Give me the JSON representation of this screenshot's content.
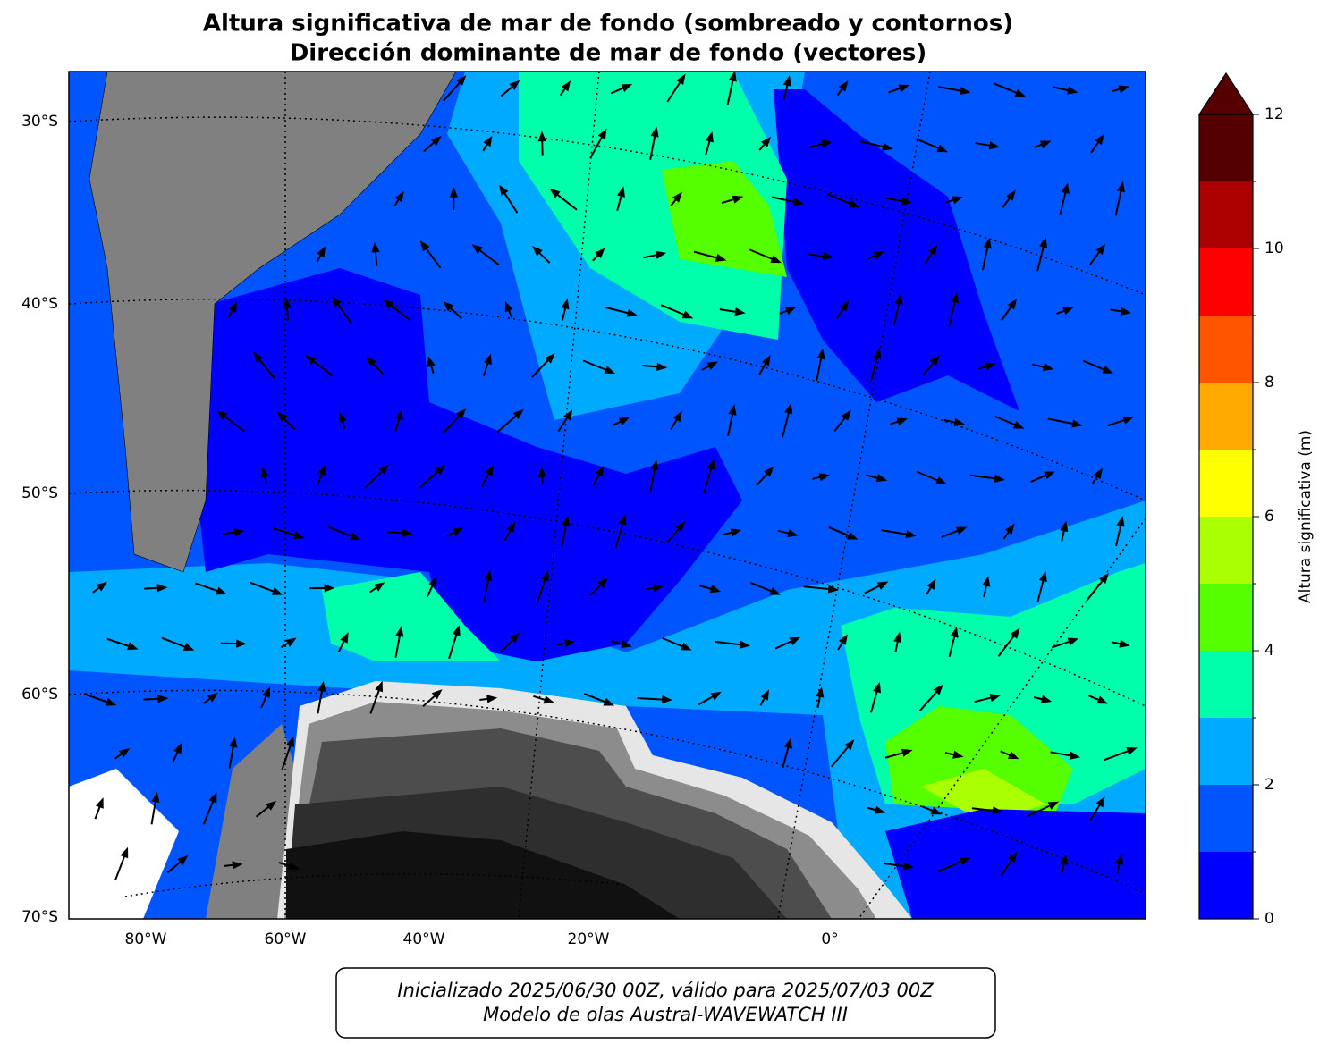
{
  "title": [
    "Altura significativa de mar de fondo (sombreado y contornos)",
    "Dirección dominante de mar de fondo (vectores)"
  ],
  "map": {
    "lat_labels": [
      "30°S",
      "40°S",
      "50°S",
      "60°S",
      "70°S"
    ],
    "lon_labels": [
      "80°W",
      "60°W",
      "40°W",
      "20°W",
      "0°"
    ]
  },
  "colorbar": {
    "label": "Altura significativa (m)",
    "bounds": [
      0,
      1,
      2,
      3,
      4,
      5,
      6,
      7,
      8,
      9,
      10,
      11,
      12
    ],
    "colors": [
      "#0000ff",
      "#0055ff",
      "#00aaff",
      "#00ffaa",
      "#55ff00",
      "#aaff00",
      "#ffff00",
      "#ffaa00",
      "#ff5500",
      "#ff0000",
      "#aa0000",
      "#550000"
    ],
    "extend_color": "#550000",
    "ticks": [
      0,
      2,
      4,
      6,
      8,
      10,
      12
    ]
  },
  "footer": [
    "Inicializado 2025/06/30 00Z, válido para 2025/07/03 00Z",
    "Modelo de olas Austral-WAVEWATCH III"
  ]
}
